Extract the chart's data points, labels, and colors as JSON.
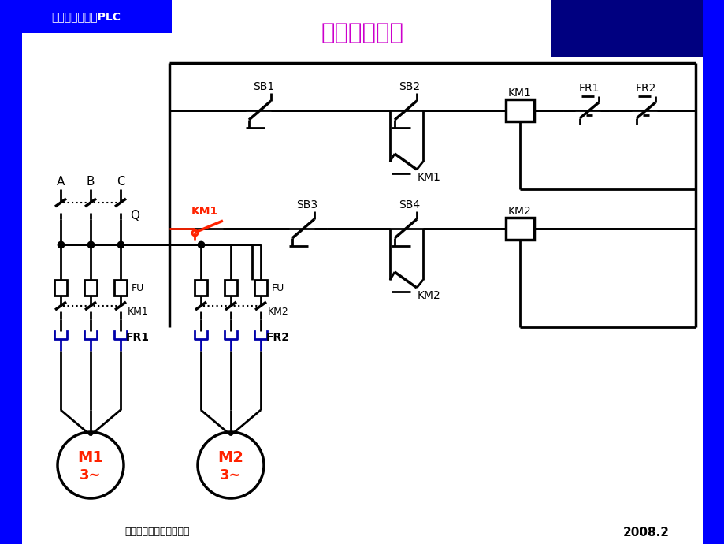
{
  "title": "判断电路功能",
  "title_color": "#CC00CC",
  "title_fontsize": 22,
  "bg_color": "#FFFFFF",
  "border_color": "#0000FF",
  "header_text": "电气控制技术及PLC",
  "footer_text": "青岛大学自动化工程学院",
  "year_text": "2008.2",
  "text_color_red": "#FF2200",
  "text_color_black": "#000000"
}
